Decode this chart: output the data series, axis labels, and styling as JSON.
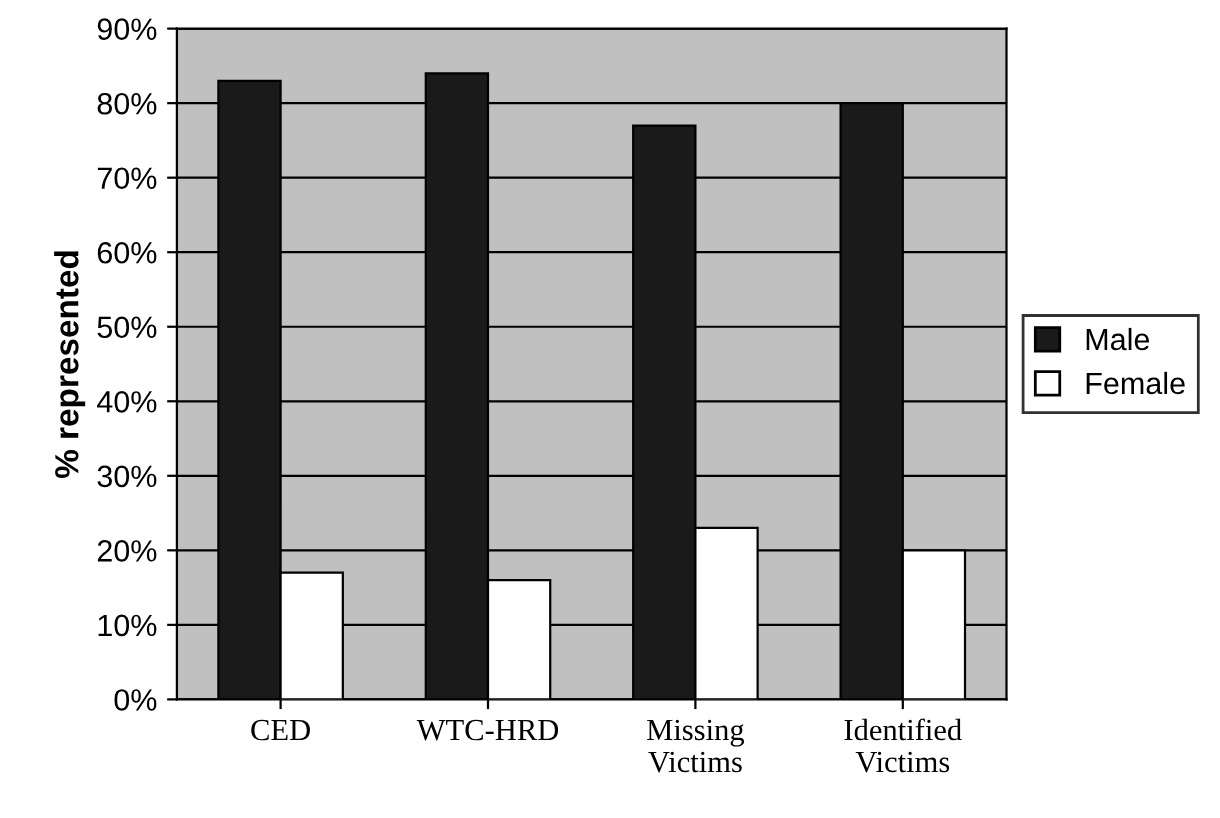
{
  "chart_data": {
    "type": "bar",
    "ylabel": "% represented",
    "categories": [
      "CED",
      "WTC-HRD",
      "Missing\nVictims",
      "Identified\nVictims"
    ],
    "series": [
      {
        "name": "Male",
        "color": "#1a1a1a",
        "values": [
          83,
          84,
          77,
          80
        ]
      },
      {
        "name": "Female",
        "color": "#ffffff",
        "values": [
          17,
          16,
          23,
          20
        ]
      }
    ],
    "ylim": [
      0,
      90
    ],
    "yticks": [
      {
        "value": 0,
        "label": "0%"
      },
      {
        "value": 10,
        "label": "10%"
      },
      {
        "value": 20,
        "label": "20%"
      },
      {
        "value": 30,
        "label": "30%"
      },
      {
        "value": 40,
        "label": "40%"
      },
      {
        "value": 50,
        "label": "50%"
      },
      {
        "value": 60,
        "label": "60%"
      },
      {
        "value": 70,
        "label": "70%"
      },
      {
        "value": 80,
        "label": "80%"
      },
      {
        "value": 90,
        "label": "90%"
      }
    ],
    "grid": "y",
    "legend": "right"
  }
}
